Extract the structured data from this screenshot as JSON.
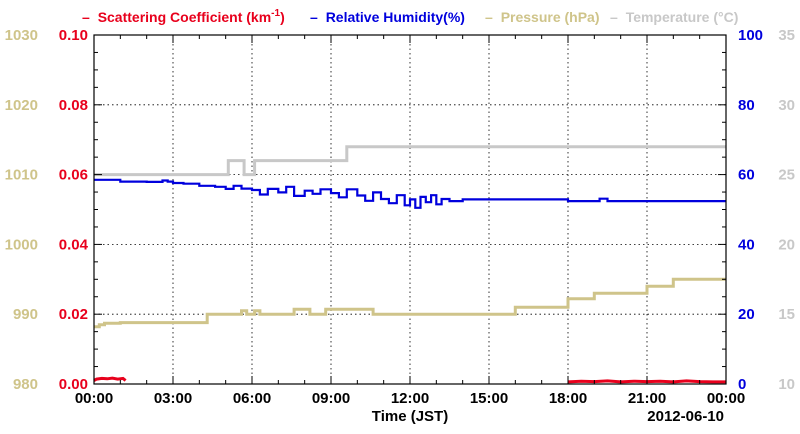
{
  "colors": {
    "scattering": "#e8001c",
    "humidity": "#0000dd",
    "pressure": "#cfc48a",
    "temperature": "#c8c8c8",
    "grid": "#000000",
    "frame": "#000000"
  },
  "legend": {
    "scattering_label": "Scattering Coefficient (km",
    "scattering_sup": "-1",
    "scattering_close": ")",
    "humidity_label": "Relative Humidity(%)",
    "pressure_label": "Pressure (hPa)",
    "temperature_label": "Temperature (°C)",
    "dash": "–"
  },
  "chart_data": {
    "type": "line",
    "xlabel": "Time (JST)",
    "date_label": "2012-06-10",
    "x_ticks": [
      "00:00",
      "03:00",
      "06:00",
      "09:00",
      "12:00",
      "15:00",
      "18:00",
      "21:00",
      "00:00"
    ],
    "xlim": [
      "00:00",
      "24:00"
    ],
    "grid": true,
    "axes": {
      "pressure": {
        "side": "left-outer",
        "ylim": [
          980,
          1030
        ],
        "ticks": [
          "980",
          "990",
          "1000",
          "1010",
          "1020",
          "1030"
        ]
      },
      "scattering": {
        "side": "left-inner",
        "ylim": [
          0,
          0.1
        ],
        "ticks": [
          "0.00",
          "0.02",
          "0.04",
          "0.06",
          "0.08",
          "0.10"
        ]
      },
      "humidity": {
        "side": "right-inner",
        "ylim": [
          0,
          100
        ],
        "ticks": [
          "0",
          "20",
          "40",
          "60",
          "80",
          "100"
        ]
      },
      "temperature": {
        "side": "right-outer",
        "ylim": [
          10,
          35
        ],
        "ticks": [
          "10",
          "15",
          "20",
          "25",
          "30",
          "35"
        ]
      }
    },
    "series": [
      {
        "name": "Scattering Coefficient (km-1)",
        "axis": "scattering",
        "x": [
          0.0,
          0.1,
          0.3,
          0.5,
          0.7,
          0.9,
          1.1,
          1.2,
          18.0,
          18.5,
          19.0,
          19.5,
          20.0,
          20.5,
          21.0,
          21.5,
          22.0,
          22.5,
          23.0,
          23.5,
          24.0
        ],
        "values": [
          0.001,
          0.0014,
          0.0016,
          0.0015,
          0.0017,
          0.0014,
          0.0016,
          0.001,
          0.0006,
          0.0008,
          0.0007,
          0.0009,
          0.0006,
          0.0008,
          0.0007,
          0.0008,
          0.0006,
          0.0009,
          0.0007,
          0.0006,
          0.0006
        ]
      },
      {
        "name": "Relative Humidity(%)",
        "axis": "humidity",
        "x": [
          0.0,
          0.8,
          1.0,
          2.0,
          2.6,
          2.8,
          3.0,
          3.4,
          4.0,
          4.6,
          5.0,
          5.3,
          5.6,
          6.0,
          6.3,
          6.6,
          7.0,
          7.3,
          7.6,
          8.0,
          8.3,
          8.6,
          9.0,
          9.3,
          9.6,
          10.0,
          10.3,
          10.6,
          10.9,
          11.2,
          11.5,
          11.8,
          12.0,
          12.2,
          12.4,
          12.6,
          12.8,
          13.0,
          13.2,
          13.5,
          14.0,
          15.0,
          16.0,
          17.0,
          17.9,
          18.0,
          19.0,
          19.2,
          19.5,
          20.0,
          21.0,
          22.0,
          23.0,
          24.0
        ],
        "values": [
          58.5,
          58.5,
          58.0,
          57.9,
          58.3,
          58.0,
          57.6,
          57.4,
          56.8,
          56.5,
          55.9,
          56.8,
          56.0,
          55.6,
          54.3,
          55.9,
          54.9,
          56.5,
          53.9,
          55.4,
          54.5,
          55.8,
          54.7,
          53.5,
          55.8,
          54.0,
          52.5,
          54.9,
          53.0,
          51.8,
          54.1,
          51.2,
          52.9,
          50.5,
          53.6,
          52.1,
          54.1,
          51.5,
          53.0,
          52.4,
          52.9,
          52.9,
          52.9,
          52.9,
          52.9,
          52.4,
          52.4,
          53.1,
          52.4,
          52.4,
          52.4,
          52.4,
          52.4,
          52.4
        ]
      },
      {
        "name": "Pressure (hPa)",
        "axis": "pressure",
        "x": [
          0.0,
          0.2,
          0.4,
          1.0,
          2.0,
          3.0,
          4.0,
          4.3,
          5.0,
          5.4,
          5.6,
          5.8,
          6.1,
          6.3,
          6.5,
          7.0,
          7.5,
          7.6,
          7.9,
          8.2,
          8.6,
          8.8,
          9.1,
          9.3,
          10.0,
          10.5,
          10.6,
          11.0,
          12.0,
          13.0,
          14.0,
          15.0,
          15.8,
          16.0,
          16.9,
          17.0,
          17.9,
          18.0,
          18.9,
          19.0,
          19.9,
          20.0,
          20.9,
          21.0,
          21.9,
          22.0,
          23.0,
          24.0
        ],
        "values": [
          988.2,
          988.5,
          988.7,
          988.8,
          988.8,
          988.8,
          988.8,
          990.0,
          990.0,
          990.0,
          990.5,
          990.0,
          990.5,
          990.0,
          990.0,
          990.0,
          990.0,
          990.7,
          990.7,
          990.0,
          990.0,
          990.7,
          990.7,
          990.7,
          990.7,
          990.7,
          990.0,
          990.0,
          990.0,
          990.0,
          990.0,
          990.0,
          990.0,
          991.0,
          991.0,
          991.0,
          991.0,
          992.2,
          992.2,
          993.0,
          993.0,
          993.0,
          993.0,
          994.0,
          994.0,
          995.0,
          995.0,
          995.0
        ]
      },
      {
        "name": "Temperature (°C)",
        "axis": "temperature",
        "x": [
          0.0,
          1.0,
          2.0,
          3.0,
          4.0,
          5.0,
          5.1,
          5.5,
          5.7,
          6.0,
          6.1,
          7.0,
          8.0,
          9.0,
          9.5,
          9.6,
          11.0,
          13.0,
          15.0,
          17.0,
          19.0,
          21.0,
          23.0,
          24.0
        ],
        "values": [
          25.0,
          25.0,
          25.0,
          25.0,
          25.0,
          25.0,
          26.0,
          26.0,
          25.0,
          25.0,
          26.0,
          26.0,
          26.0,
          26.0,
          26.0,
          27.0,
          27.0,
          27.0,
          27.0,
          27.0,
          27.0,
          27.0,
          27.0,
          27.0
        ]
      }
    ]
  }
}
